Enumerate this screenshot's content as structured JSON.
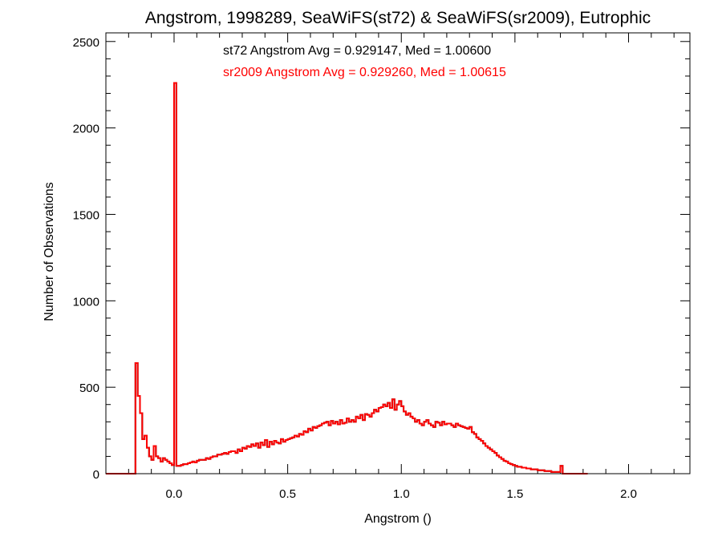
{
  "chart_data": {
    "type": "bar",
    "title": "Angstrom, 1998289, SeaWiFS(st72) & SeaWiFS(sr2009), Eutrophic",
    "xlabel": "Angstrom ()",
    "ylabel": "Number of Observations",
    "xlim": [
      -0.3,
      2.27
    ],
    "ylim": [
      0,
      2550
    ],
    "x_ticks": [
      "0.0",
      "0.5",
      "1.0",
      "1.5",
      "2.0"
    ],
    "y_ticks": [
      "0",
      "500",
      "1000",
      "1500",
      "2000",
      "2500"
    ],
    "grid": false,
    "annotations": [
      {
        "text": "st72 Angstrom Avg = 0.929147, Med = 1.00600",
        "color": "#000000"
      },
      {
        "text": "sr2009 Angstrom Avg = 0.929260, Med = 1.00615",
        "color": "#ff0000"
      }
    ],
    "bin_width": 0.01,
    "series": [
      {
        "name": "st72",
        "color": "#000000",
        "x_start": -0.3,
        "values": [
          0,
          0,
          0,
          0,
          0,
          0,
          0,
          0,
          0,
          0,
          0,
          0,
          0,
          640,
          450,
          350,
          200,
          220,
          150,
          100,
          80,
          160,
          100,
          90,
          70,
          90,
          80,
          70,
          60,
          50,
          2260,
          45,
          45,
          50,
          55,
          55,
          60,
          65,
          70,
          65,
          75,
          80,
          80,
          80,
          90,
          85,
          95,
          100,
          100,
          110,
          110,
          115,
          120,
          115,
          125,
          130,
          130,
          120,
          140,
          130,
          150,
          145,
          160,
          155,
          170,
          160,
          175,
          150,
          180,
          165,
          195,
          155,
          185,
          170,
          190,
          180,
          175,
          200,
          185,
          195,
          200,
          205,
          210,
          220,
          215,
          230,
          225,
          245,
          240,
          260,
          250,
          270,
          265,
          275,
          280,
          290,
          295,
          300,
          280,
          305,
          290,
          300,
          285,
          310,
          290,
          295,
          320,
          300,
          310,
          300,
          330,
          320,
          340,
          310,
          345,
          340,
          330,
          350,
          370,
          360,
          380,
          385,
          400,
          390,
          410,
          380,
          430,
          370,
          400,
          420,
          390,
          360,
          340,
          350,
          330,
          320,
          300,
          310,
          290,
          280,
          300,
          310,
          290,
          280,
          270,
          300,
          295,
          280,
          300,
          285,
          290,
          290,
          280,
          270,
          290,
          280,
          275,
          270,
          265,
          260,
          270,
          240,
          230,
          210,
          200,
          190,
          175,
          160,
          150,
          140,
          130,
          120,
          105,
          95,
          85,
          75,
          70,
          60,
          55,
          50,
          45,
          40,
          40,
          35,
          35,
          30,
          30,
          25,
          25,
          25,
          20,
          20,
          20,
          15,
          15,
          15,
          10,
          10,
          10,
          10,
          45,
          0,
          0,
          0,
          0,
          0,
          0,
          0,
          0,
          0,
          0,
          0
        ]
      },
      {
        "name": "sr2009",
        "color": "#ff0000",
        "x_start": -0.3,
        "values": [
          0,
          0,
          0,
          0,
          0,
          0,
          0,
          0,
          0,
          0,
          0,
          0,
          0,
          640,
          450,
          350,
          200,
          220,
          150,
          100,
          80,
          160,
          100,
          90,
          70,
          90,
          80,
          70,
          60,
          50,
          2260,
          45,
          45,
          50,
          55,
          55,
          60,
          65,
          70,
          65,
          75,
          80,
          80,
          80,
          90,
          85,
          95,
          100,
          100,
          110,
          110,
          115,
          120,
          115,
          125,
          130,
          130,
          120,
          140,
          130,
          150,
          145,
          160,
          155,
          170,
          160,
          175,
          150,
          180,
          165,
          195,
          155,
          185,
          170,
          190,
          180,
          175,
          200,
          185,
          195,
          200,
          205,
          210,
          220,
          215,
          230,
          225,
          245,
          240,
          260,
          250,
          270,
          265,
          275,
          280,
          290,
          295,
          300,
          280,
          305,
          290,
          300,
          285,
          310,
          290,
          295,
          320,
          300,
          310,
          300,
          330,
          320,
          340,
          310,
          345,
          340,
          330,
          350,
          370,
          360,
          380,
          385,
          400,
          390,
          410,
          380,
          430,
          370,
          400,
          420,
          390,
          360,
          340,
          350,
          330,
          320,
          300,
          310,
          290,
          280,
          300,
          310,
          290,
          280,
          270,
          300,
          295,
          280,
          300,
          285,
          290,
          290,
          280,
          270,
          290,
          280,
          275,
          270,
          265,
          260,
          270,
          240,
          230,
          210,
          200,
          190,
          175,
          160,
          150,
          140,
          130,
          120,
          105,
          95,
          85,
          75,
          70,
          60,
          55,
          50,
          45,
          40,
          40,
          35,
          35,
          30,
          30,
          25,
          25,
          25,
          20,
          20,
          20,
          15,
          15,
          15,
          10,
          10,
          10,
          10,
          45,
          0,
          0,
          0,
          0,
          0,
          0,
          0,
          0,
          0,
          0,
          0
        ]
      }
    ]
  }
}
